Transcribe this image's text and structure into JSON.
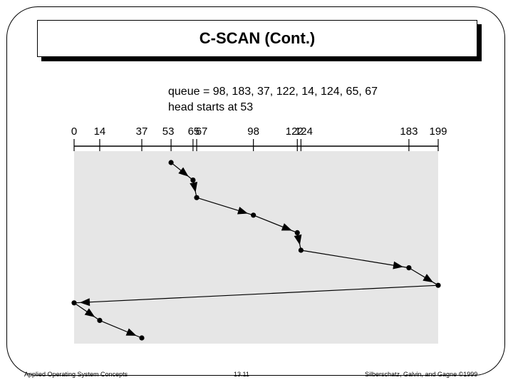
{
  "slide": {
    "title": "C-SCAN (Cont.)",
    "footer_left": "Applied Operating System Concepts",
    "footer_center": "13.11",
    "footer_right": "Silberschatz, Galvin, and Gagne ©1999"
  },
  "diagram": {
    "queue_text": "queue = 98, 183, 37, 122, 14, 124, 65, 67",
    "head_text": "head starts at 53",
    "min_cylinder": 0,
    "max_cylinder": 199,
    "scale_ticks": [
      0,
      14,
      37,
      53,
      65,
      67,
      98,
      122,
      124,
      183,
      199
    ],
    "scale_labels": [
      "0",
      "14",
      "37",
      "53",
      "65",
      "67",
      "98",
      "122",
      "124",
      "183",
      "199"
    ],
    "service_order": [
      53,
      65,
      67,
      98,
      122,
      124,
      183,
      199,
      0,
      14,
      37
    ],
    "panel_color": "#e6e6e6"
  }
}
